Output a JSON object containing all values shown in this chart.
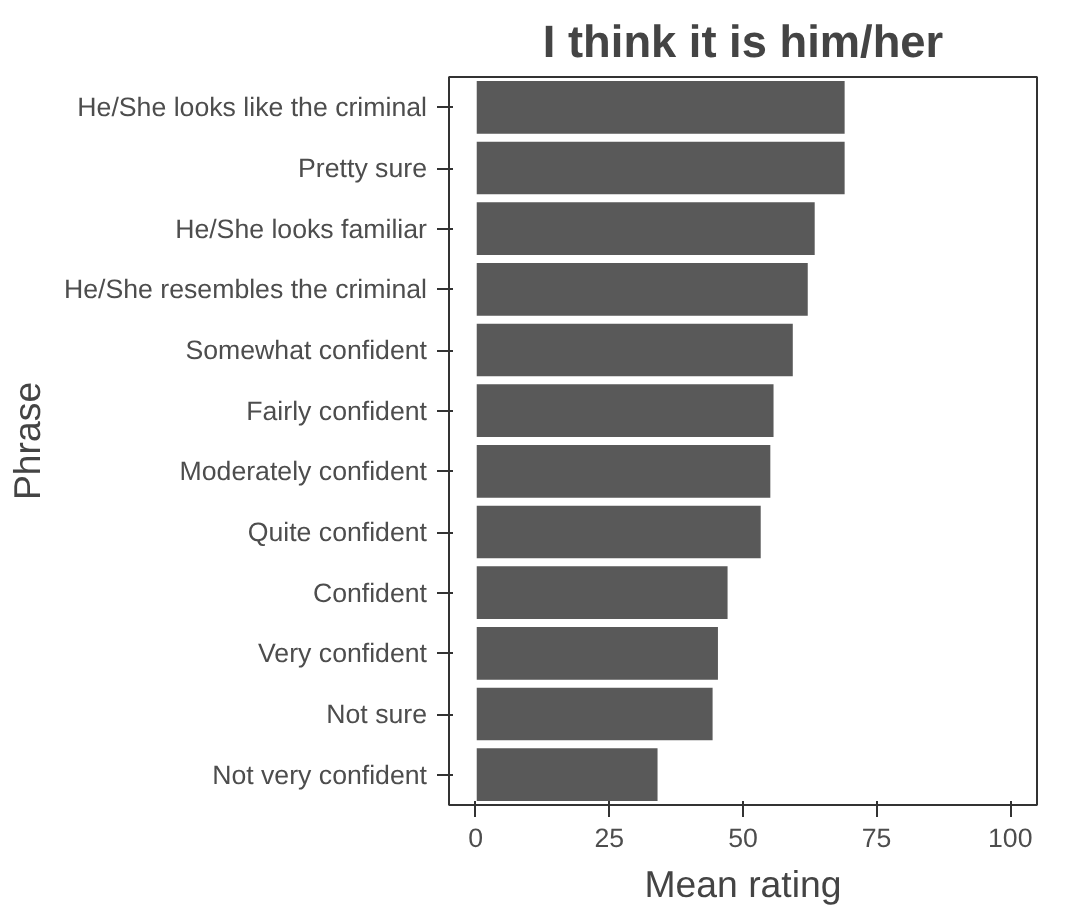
{
  "chart_data": {
    "type": "bar",
    "orientation": "horizontal",
    "title": "I think it is him/her",
    "xlabel": "Mean rating",
    "ylabel": "Phrase",
    "categories": [
      "He/She looks like the criminal",
      "Pretty sure",
      "He/She looks familiar",
      "He/She resembles the criminal",
      "Somewhat confident",
      "Fairly confident",
      "Moderately confident",
      "Quite confident",
      "Confident",
      "Very confident",
      "Not sure",
      "Not very confident"
    ],
    "values": [
      69.2,
      69.2,
      63.6,
      62.3,
      59.5,
      55.9,
      55.3,
      53.5,
      47.3,
      45.5,
      44.5,
      34.2
    ],
    "color": "#595959",
    "xlim": [
      -5,
      105
    ],
    "xticks": [
      0,
      25,
      50,
      75,
      100
    ],
    "grid": false
  }
}
